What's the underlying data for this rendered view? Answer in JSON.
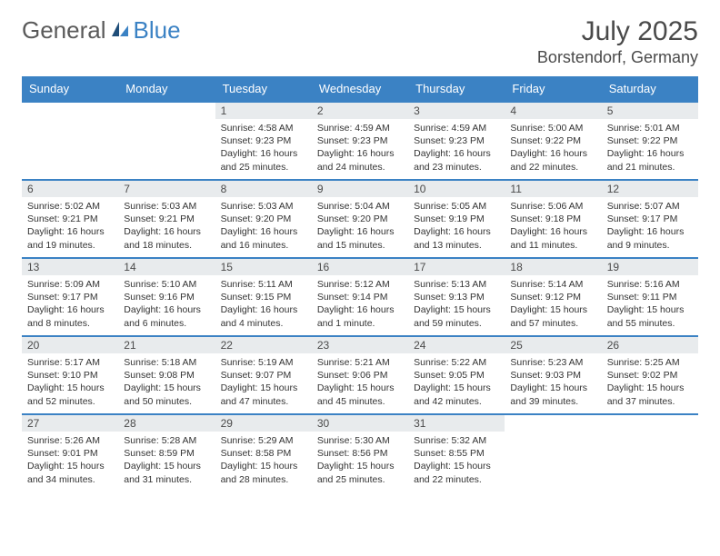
{
  "logo": {
    "general": "General",
    "blue": "Blue"
  },
  "title": "July 2025",
  "location": "Borstendorf, Germany",
  "colors": {
    "header_bg": "#3b82c4",
    "daynum_bg": "#e8ebed",
    "rule": "#3b82c4",
    "text": "#4a4a4a"
  },
  "day_labels": [
    "Sunday",
    "Monday",
    "Tuesday",
    "Wednesday",
    "Thursday",
    "Friday",
    "Saturday"
  ],
  "weeks": [
    [
      {
        "n": "",
        "sunrise": "",
        "sunset": "",
        "daylight": ""
      },
      {
        "n": "",
        "sunrise": "",
        "sunset": "",
        "daylight": ""
      },
      {
        "n": "1",
        "sunrise": "Sunrise: 4:58 AM",
        "sunset": "Sunset: 9:23 PM",
        "daylight": "Daylight: 16 hours and 25 minutes."
      },
      {
        "n": "2",
        "sunrise": "Sunrise: 4:59 AM",
        "sunset": "Sunset: 9:23 PM",
        "daylight": "Daylight: 16 hours and 24 minutes."
      },
      {
        "n": "3",
        "sunrise": "Sunrise: 4:59 AM",
        "sunset": "Sunset: 9:23 PM",
        "daylight": "Daylight: 16 hours and 23 minutes."
      },
      {
        "n": "4",
        "sunrise": "Sunrise: 5:00 AM",
        "sunset": "Sunset: 9:22 PM",
        "daylight": "Daylight: 16 hours and 22 minutes."
      },
      {
        "n": "5",
        "sunrise": "Sunrise: 5:01 AM",
        "sunset": "Sunset: 9:22 PM",
        "daylight": "Daylight: 16 hours and 21 minutes."
      }
    ],
    [
      {
        "n": "6",
        "sunrise": "Sunrise: 5:02 AM",
        "sunset": "Sunset: 9:21 PM",
        "daylight": "Daylight: 16 hours and 19 minutes."
      },
      {
        "n": "7",
        "sunrise": "Sunrise: 5:03 AM",
        "sunset": "Sunset: 9:21 PM",
        "daylight": "Daylight: 16 hours and 18 minutes."
      },
      {
        "n": "8",
        "sunrise": "Sunrise: 5:03 AM",
        "sunset": "Sunset: 9:20 PM",
        "daylight": "Daylight: 16 hours and 16 minutes."
      },
      {
        "n": "9",
        "sunrise": "Sunrise: 5:04 AM",
        "sunset": "Sunset: 9:20 PM",
        "daylight": "Daylight: 16 hours and 15 minutes."
      },
      {
        "n": "10",
        "sunrise": "Sunrise: 5:05 AM",
        "sunset": "Sunset: 9:19 PM",
        "daylight": "Daylight: 16 hours and 13 minutes."
      },
      {
        "n": "11",
        "sunrise": "Sunrise: 5:06 AM",
        "sunset": "Sunset: 9:18 PM",
        "daylight": "Daylight: 16 hours and 11 minutes."
      },
      {
        "n": "12",
        "sunrise": "Sunrise: 5:07 AM",
        "sunset": "Sunset: 9:17 PM",
        "daylight": "Daylight: 16 hours and 9 minutes."
      }
    ],
    [
      {
        "n": "13",
        "sunrise": "Sunrise: 5:09 AM",
        "sunset": "Sunset: 9:17 PM",
        "daylight": "Daylight: 16 hours and 8 minutes."
      },
      {
        "n": "14",
        "sunrise": "Sunrise: 5:10 AM",
        "sunset": "Sunset: 9:16 PM",
        "daylight": "Daylight: 16 hours and 6 minutes."
      },
      {
        "n": "15",
        "sunrise": "Sunrise: 5:11 AM",
        "sunset": "Sunset: 9:15 PM",
        "daylight": "Daylight: 16 hours and 4 minutes."
      },
      {
        "n": "16",
        "sunrise": "Sunrise: 5:12 AM",
        "sunset": "Sunset: 9:14 PM",
        "daylight": "Daylight: 16 hours and 1 minute."
      },
      {
        "n": "17",
        "sunrise": "Sunrise: 5:13 AM",
        "sunset": "Sunset: 9:13 PM",
        "daylight": "Daylight: 15 hours and 59 minutes."
      },
      {
        "n": "18",
        "sunrise": "Sunrise: 5:14 AM",
        "sunset": "Sunset: 9:12 PM",
        "daylight": "Daylight: 15 hours and 57 minutes."
      },
      {
        "n": "19",
        "sunrise": "Sunrise: 5:16 AM",
        "sunset": "Sunset: 9:11 PM",
        "daylight": "Daylight: 15 hours and 55 minutes."
      }
    ],
    [
      {
        "n": "20",
        "sunrise": "Sunrise: 5:17 AM",
        "sunset": "Sunset: 9:10 PM",
        "daylight": "Daylight: 15 hours and 52 minutes."
      },
      {
        "n": "21",
        "sunrise": "Sunrise: 5:18 AM",
        "sunset": "Sunset: 9:08 PM",
        "daylight": "Daylight: 15 hours and 50 minutes."
      },
      {
        "n": "22",
        "sunrise": "Sunrise: 5:19 AM",
        "sunset": "Sunset: 9:07 PM",
        "daylight": "Daylight: 15 hours and 47 minutes."
      },
      {
        "n": "23",
        "sunrise": "Sunrise: 5:21 AM",
        "sunset": "Sunset: 9:06 PM",
        "daylight": "Daylight: 15 hours and 45 minutes."
      },
      {
        "n": "24",
        "sunrise": "Sunrise: 5:22 AM",
        "sunset": "Sunset: 9:05 PM",
        "daylight": "Daylight: 15 hours and 42 minutes."
      },
      {
        "n": "25",
        "sunrise": "Sunrise: 5:23 AM",
        "sunset": "Sunset: 9:03 PM",
        "daylight": "Daylight: 15 hours and 39 minutes."
      },
      {
        "n": "26",
        "sunrise": "Sunrise: 5:25 AM",
        "sunset": "Sunset: 9:02 PM",
        "daylight": "Daylight: 15 hours and 37 minutes."
      }
    ],
    [
      {
        "n": "27",
        "sunrise": "Sunrise: 5:26 AM",
        "sunset": "Sunset: 9:01 PM",
        "daylight": "Daylight: 15 hours and 34 minutes."
      },
      {
        "n": "28",
        "sunrise": "Sunrise: 5:28 AM",
        "sunset": "Sunset: 8:59 PM",
        "daylight": "Daylight: 15 hours and 31 minutes."
      },
      {
        "n": "29",
        "sunrise": "Sunrise: 5:29 AM",
        "sunset": "Sunset: 8:58 PM",
        "daylight": "Daylight: 15 hours and 28 minutes."
      },
      {
        "n": "30",
        "sunrise": "Sunrise: 5:30 AM",
        "sunset": "Sunset: 8:56 PM",
        "daylight": "Daylight: 15 hours and 25 minutes."
      },
      {
        "n": "31",
        "sunrise": "Sunrise: 5:32 AM",
        "sunset": "Sunset: 8:55 PM",
        "daylight": "Daylight: 15 hours and 22 minutes."
      },
      {
        "n": "",
        "sunrise": "",
        "sunset": "",
        "daylight": ""
      },
      {
        "n": "",
        "sunrise": "",
        "sunset": "",
        "daylight": ""
      }
    ]
  ]
}
